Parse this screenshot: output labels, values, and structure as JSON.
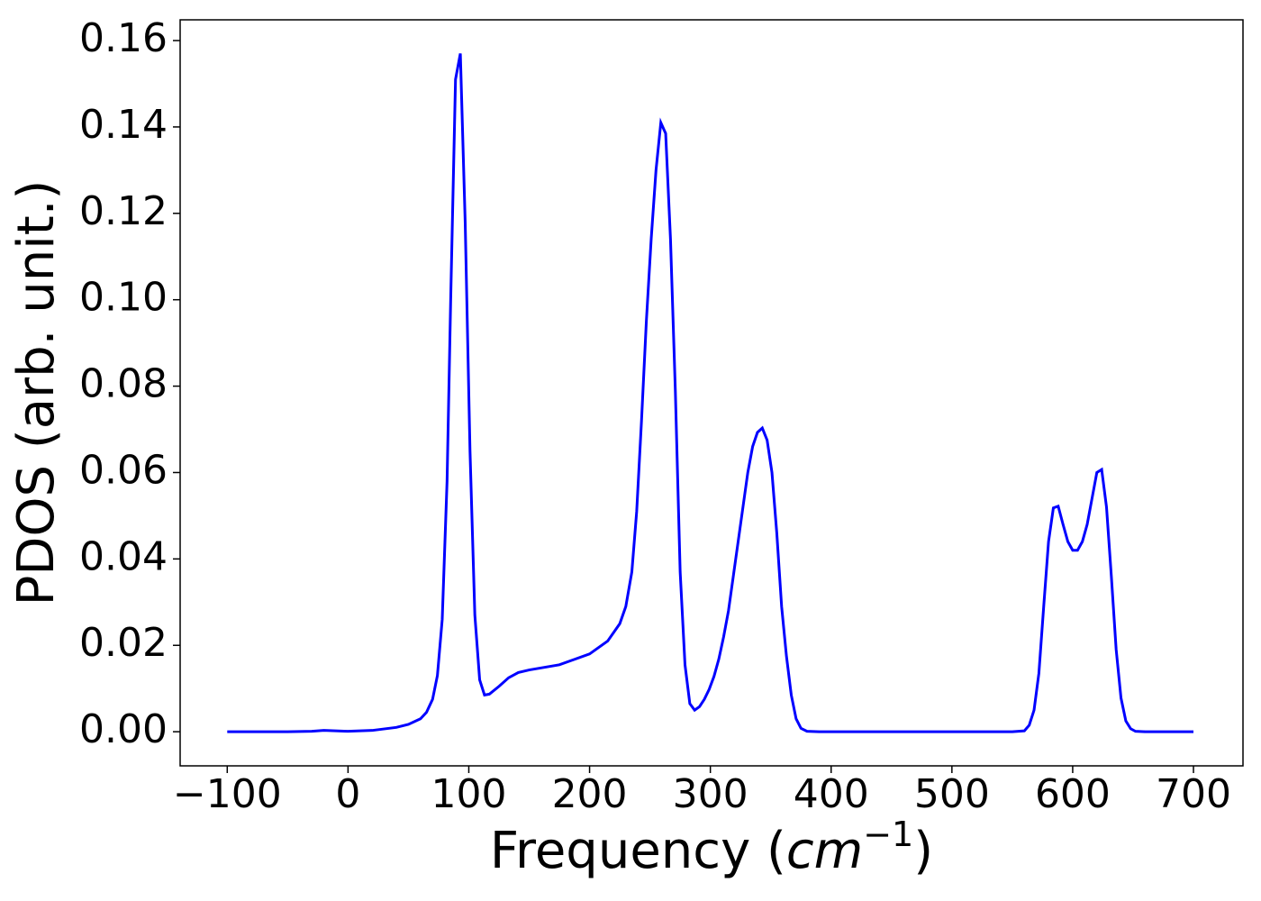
{
  "chart_data": {
    "type": "line",
    "xlabel": {
      "prefix": "Frequency (",
      "unit": "cm",
      "exponent": "−1",
      "suffix": ")"
    },
    "ylabel": "PDOS (arb. unit.)",
    "xlim": [
      -139,
      741
    ],
    "ylim": [
      -0.0079,
      0.1648
    ],
    "xticks": [
      {
        "value": -100,
        "label": "−100"
      },
      0,
      100,
      200,
      300,
      400,
      500,
      600,
      700
    ],
    "yticks": [
      {
        "value": 0,
        "label": "0.00"
      },
      {
        "value": 0.02,
        "label": "0.02"
      },
      {
        "value": 0.04,
        "label": "0.04"
      },
      {
        "value": 0.06,
        "label": "0.06"
      },
      {
        "value": 0.08,
        "label": "0.08"
      },
      {
        "value": 0.1,
        "label": "0.10"
      },
      {
        "value": 0.12,
        "label": "0.12"
      },
      {
        "value": 0.14,
        "label": "0.14"
      },
      {
        "value": 0.16,
        "label": "0.16"
      }
    ],
    "grid": false,
    "x": [
      -100,
      -50,
      -30,
      -20,
      0,
      20,
      40,
      50,
      60,
      65,
      70,
      74,
      78,
      82,
      85,
      89,
      93,
      97,
      101,
      105,
      109,
      113,
      117,
      125,
      133,
      141,
      150,
      175,
      200,
      215,
      225,
      230,
      235,
      239,
      243,
      247,
      251,
      255,
      259,
      263,
      267,
      271,
      275,
      279,
      283,
      287,
      291,
      295,
      299,
      303,
      307,
      311,
      315,
      319,
      323,
      327,
      331,
      335,
      339,
      343,
      347,
      351,
      355,
      359,
      363,
      367,
      371,
      375,
      380,
      390,
      550,
      560,
      564,
      568,
      572,
      576,
      580,
      584,
      588,
      592,
      596,
      600,
      604,
      608,
      612,
      616,
      620,
      624,
      628,
      632,
      636,
      640,
      644,
      648,
      652,
      660,
      700
    ],
    "series": [
      {
        "color": "#0000ff",
        "values": [
          0,
          0,
          0.0001,
          0.0003,
          0.0001,
          0.0003,
          0.001,
          0.0017,
          0.003,
          0.0045,
          0.0075,
          0.013,
          0.026,
          0.058,
          0.1,
          0.151,
          0.157,
          0.118,
          0.065,
          0.027,
          0.012,
          0.0085,
          0.0087,
          0.0105,
          0.0125,
          0.0137,
          0.0143,
          0.0155,
          0.018,
          0.021,
          0.025,
          0.029,
          0.037,
          0.051,
          0.072,
          0.095,
          0.114,
          0.13,
          0.141,
          0.1385,
          0.114,
          0.079,
          0.037,
          0.0155,
          0.0065,
          0.005,
          0.0058,
          0.0075,
          0.0098,
          0.0128,
          0.0168,
          0.022,
          0.028,
          0.036,
          0.044,
          0.052,
          0.06,
          0.066,
          0.0693,
          0.0703,
          0.0675,
          0.06,
          0.046,
          0.029,
          0.0175,
          0.0085,
          0.003,
          0.0008,
          0.0001,
          0,
          0,
          0.0002,
          0.0015,
          0.005,
          0.0135,
          0.029,
          0.044,
          0.0518,
          0.0522,
          0.048,
          0.044,
          0.042,
          0.042,
          0.044,
          0.048,
          0.054,
          0.06,
          0.0607,
          0.052,
          0.036,
          0.019,
          0.0078,
          0.0025,
          0.0007,
          0.0001,
          0,
          0
        ]
      }
    ]
  }
}
